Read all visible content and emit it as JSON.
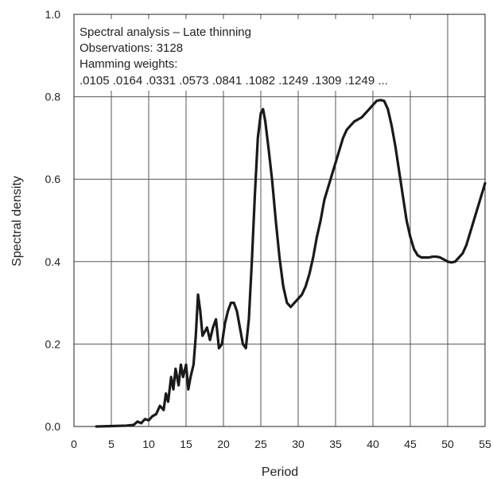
{
  "chart_data": {
    "type": "line",
    "title": "",
    "xlabel": "Period",
    "ylabel": "Spectral density",
    "xlim": [
      0,
      55
    ],
    "ylim": [
      0,
      1.0
    ],
    "x_ticks": [
      0,
      5,
      10,
      15,
      20,
      25,
      30,
      35,
      40,
      45,
      50,
      55
    ],
    "y_ticks": [
      0.0,
      0.2,
      0.4,
      0.6,
      0.8,
      1.0
    ],
    "x_tick_labels": [
      "0",
      "5",
      "10",
      "15",
      "20",
      "25",
      "30",
      "35",
      "40",
      "45",
      "50",
      "55"
    ],
    "y_tick_labels": [
      "0.0",
      "0.2",
      "0.4",
      "0.6",
      "0.8",
      "1.0"
    ],
    "grid": true,
    "annotation_lines": [
      "Spectral analysis – Late thinning",
      "Observations: 3128",
      "Hamming weights:",
      ".0105 .0164 .0331 .0573 .0841 .1082 .1249 .1309 .1249 ..."
    ],
    "line_color": "#1a1a1a",
    "series": [
      {
        "x": [
          3.0,
          5.0,
          7.0,
          8.0,
          8.5,
          9.0,
          9.5,
          10.0,
          10.5,
          11.0,
          11.5,
          12.0,
          12.3,
          12.6,
          13.0,
          13.3,
          13.6,
          14.0,
          14.3,
          14.6,
          15.0,
          15.3,
          15.6,
          16.0,
          16.3,
          16.6,
          16.9,
          17.2,
          17.5,
          17.8,
          18.2,
          18.6,
          19.0,
          19.4,
          19.8,
          20.2,
          20.6,
          21.0,
          21.4,
          21.8,
          22.2,
          22.6,
          23.0,
          23.4,
          23.8,
          24.2,
          24.6,
          25.0,
          25.3,
          25.6,
          26.0,
          26.5,
          27.0,
          27.5,
          28.0,
          28.5,
          29.0,
          29.5,
          30.0,
          30.5,
          31.0,
          31.5,
          32.0,
          32.5,
          33.0,
          33.5,
          34.0,
          34.5,
          35.0,
          35.5,
          36.0,
          36.5,
          37.0,
          37.5,
          38.0,
          38.5,
          39.0,
          39.5,
          40.0,
          40.5,
          41.0,
          41.5,
          42.0,
          42.5,
          43.0,
          43.5,
          44.0,
          44.5,
          45.0,
          45.5,
          46.0,
          46.5,
          47.0,
          47.5,
          48.0,
          48.5,
          49.0,
          49.5,
          50.0,
          50.5,
          51.0,
          51.5,
          52.0,
          52.5,
          53.0,
          53.5,
          54.0,
          54.5,
          55.0
        ],
        "y": [
          0.0,
          0.001,
          0.002,
          0.004,
          0.012,
          0.008,
          0.018,
          0.015,
          0.025,
          0.03,
          0.05,
          0.04,
          0.08,
          0.06,
          0.12,
          0.09,
          0.14,
          0.1,
          0.15,
          0.12,
          0.15,
          0.09,
          0.12,
          0.15,
          0.22,
          0.32,
          0.28,
          0.22,
          0.23,
          0.24,
          0.21,
          0.24,
          0.26,
          0.19,
          0.2,
          0.25,
          0.28,
          0.3,
          0.3,
          0.28,
          0.24,
          0.2,
          0.19,
          0.26,
          0.4,
          0.56,
          0.7,
          0.76,
          0.77,
          0.74,
          0.68,
          0.6,
          0.5,
          0.41,
          0.34,
          0.3,
          0.29,
          0.3,
          0.31,
          0.32,
          0.34,
          0.37,
          0.41,
          0.46,
          0.5,
          0.55,
          0.58,
          0.61,
          0.64,
          0.67,
          0.7,
          0.72,
          0.73,
          0.74,
          0.745,
          0.75,
          0.76,
          0.77,
          0.78,
          0.79,
          0.792,
          0.79,
          0.77,
          0.73,
          0.68,
          0.62,
          0.56,
          0.5,
          0.46,
          0.43,
          0.415,
          0.41,
          0.41,
          0.41,
          0.412,
          0.412,
          0.41,
          0.405,
          0.4,
          0.398,
          0.4,
          0.41,
          0.42,
          0.44,
          0.47,
          0.5,
          0.53,
          0.56,
          0.59
        ]
      }
    ]
  }
}
